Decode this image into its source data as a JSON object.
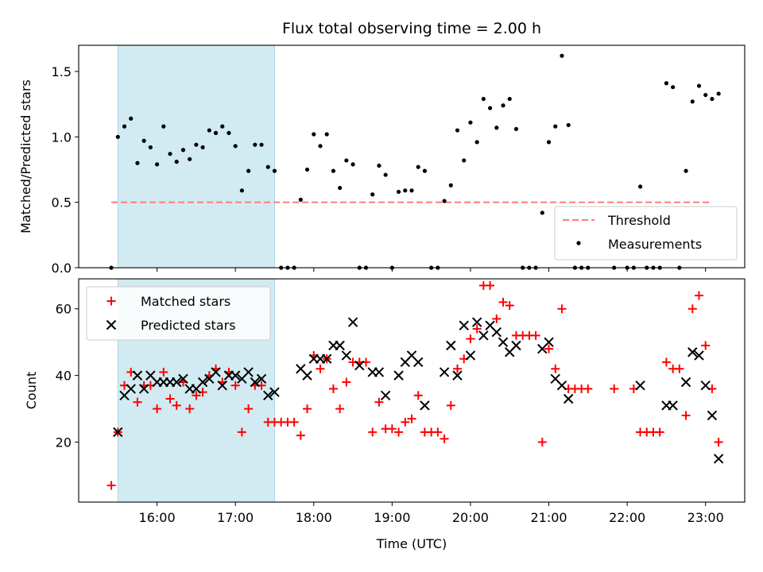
{
  "chart_data": [
    {
      "type": "scatter",
      "title": "Flux total observing time = 2.00 h",
      "xlabel": "",
      "ylabel": "Matched/Predicted stars",
      "xlim": [
        "15:00",
        "23:30"
      ],
      "ylim": [
        0,
        1.7
      ],
      "yticks": [
        0.0,
        0.5,
        1.0,
        1.5
      ],
      "shaded_region": {
        "x": [
          "15:30",
          "17:30"
        ],
        "color": "#add8e6"
      },
      "threshold": {
        "name": "Threshold",
        "y": 0.5,
        "x": [
          "15:25",
          "23:05"
        ],
        "color": "#ff7b7b",
        "style": "dashed"
      },
      "legend_location": "lower right",
      "grid": false,
      "series": [
        {
          "name": "Measurements",
          "marker": "dot",
          "color": "#000000",
          "points": [
            [
              "15:25",
              0.0
            ],
            [
              "15:30",
              1.0
            ],
            [
              "15:35",
              1.08
            ],
            [
              "15:40",
              1.14
            ],
            [
              "15:45",
              0.8
            ],
            [
              "15:50",
              0.97
            ],
            [
              "15:55",
              0.92
            ],
            [
              "16:00",
              0.79
            ],
            [
              "16:05",
              1.08
            ],
            [
              "16:10",
              0.87
            ],
            [
              "16:15",
              0.81
            ],
            [
              "16:20",
              0.9
            ],
            [
              "16:25",
              0.83
            ],
            [
              "16:30",
              0.94
            ],
            [
              "16:35",
              0.92
            ],
            [
              "16:40",
              1.05
            ],
            [
              "16:45",
              1.03
            ],
            [
              "16:50",
              1.08
            ],
            [
              "16:55",
              1.03
            ],
            [
              "17:00",
              0.93
            ],
            [
              "17:05",
              0.59
            ],
            [
              "17:10",
              0.74
            ],
            [
              "17:15",
              0.94
            ],
            [
              "17:20",
              0.94
            ],
            [
              "17:25",
              0.77
            ],
            [
              "17:30",
              0.74
            ],
            [
              "17:35",
              0.0
            ],
            [
              "17:40",
              0.0
            ],
            [
              "17:45",
              0.0
            ],
            [
              "17:50",
              0.52
            ],
            [
              "17:55",
              0.75
            ],
            [
              "18:00",
              1.02
            ],
            [
              "18:05",
              0.93
            ],
            [
              "18:10",
              1.02
            ],
            [
              "18:15",
              0.74
            ],
            [
              "18:20",
              0.61
            ],
            [
              "18:25",
              0.82
            ],
            [
              "18:30",
              0.79
            ],
            [
              "18:35",
              0.0
            ],
            [
              "18:40",
              0.0
            ],
            [
              "18:45",
              0.56
            ],
            [
              "18:50",
              0.78
            ],
            [
              "18:55",
              0.71
            ],
            [
              "19:00",
              0.0
            ],
            [
              "19:05",
              0.58
            ],
            [
              "19:10",
              0.59
            ],
            [
              "19:15",
              0.59
            ],
            [
              "19:20",
              0.77
            ],
            [
              "19:25",
              0.74
            ],
            [
              "19:30",
              0.0
            ],
            [
              "19:35",
              0.0
            ],
            [
              "19:40",
              0.51
            ],
            [
              "19:45",
              0.63
            ],
            [
              "19:50",
              1.05
            ],
            [
              "19:55",
              0.82
            ],
            [
              "20:00",
              1.11
            ],
            [
              "20:05",
              0.96
            ],
            [
              "20:10",
              1.29
            ],
            [
              "20:15",
              1.22
            ],
            [
              "20:20",
              1.07
            ],
            [
              "20:25",
              1.24
            ],
            [
              "20:30",
              1.29
            ],
            [
              "20:35",
              1.06
            ],
            [
              "20:40",
              0.0
            ],
            [
              "20:45",
              0.0
            ],
            [
              "20:50",
              0.0
            ],
            [
              "20:55",
              0.42
            ],
            [
              "21:00",
              0.96
            ],
            [
              "21:05",
              1.08
            ],
            [
              "21:10",
              1.62
            ],
            [
              "21:15",
              1.09
            ],
            [
              "21:20",
              0.0
            ],
            [
              "21:25",
              0.0
            ],
            [
              "21:30",
              0.0
            ],
            [
              "21:50",
              0.0
            ],
            [
              "22:00",
              0.0
            ],
            [
              "22:05",
              0.0
            ],
            [
              "22:10",
              0.62
            ],
            [
              "22:15",
              0.0
            ],
            [
              "22:20",
              0.0
            ],
            [
              "22:25",
              0.0
            ],
            [
              "22:30",
              1.41
            ],
            [
              "22:35",
              1.38
            ],
            [
              "22:40",
              0.0
            ],
            [
              "22:45",
              0.74
            ],
            [
              "22:50",
              1.27
            ],
            [
              "22:55",
              1.39
            ],
            [
              "23:00",
              1.32
            ],
            [
              "23:05",
              1.29
            ],
            [
              "23:10",
              1.33
            ]
          ]
        }
      ]
    },
    {
      "type": "scatter",
      "title": "",
      "xlabel": "Time (UTC)",
      "ylabel": "Count",
      "xlim": [
        "15:00",
        "23:30"
      ],
      "ylim": [
        2,
        69
      ],
      "yticks": [
        20,
        40,
        60
      ],
      "xticks": [
        "16:00",
        "17:00",
        "18:00",
        "19:00",
        "20:00",
        "21:00",
        "22:00",
        "23:00"
      ],
      "shaded_region": {
        "x": [
          "15:30",
          "17:30"
        ],
        "color": "#add8e6"
      },
      "legend_location": "upper left",
      "grid": false,
      "series": [
        {
          "name": "Matched stars",
          "marker": "plus",
          "color": "#ff0000",
          "points": [
            [
              "15:25",
              7
            ],
            [
              "15:30",
              23
            ],
            [
              "15:35",
              37
            ],
            [
              "15:40",
              41
            ],
            [
              "15:45",
              32
            ],
            [
              "15:50",
              37
            ],
            [
              "15:55",
              37
            ],
            [
              "16:00",
              30
            ],
            [
              "16:05",
              41
            ],
            [
              "16:10",
              33
            ],
            [
              "16:15",
              31
            ],
            [
              "16:20",
              38
            ],
            [
              "16:25",
              30
            ],
            [
              "16:30",
              34
            ],
            [
              "16:35",
              35
            ],
            [
              "16:40",
              40
            ],
            [
              "16:45",
              42
            ],
            [
              "16:50",
              38
            ],
            [
              "16:55",
              41
            ],
            [
              "17:00",
              37
            ],
            [
              "17:05",
              23
            ],
            [
              "17:10",
              30
            ],
            [
              "17:15",
              37
            ],
            [
              "17:20",
              37
            ],
            [
              "17:25",
              26
            ],
            [
              "17:30",
              26
            ],
            [
              "17:35",
              26
            ],
            [
              "17:40",
              26
            ],
            [
              "17:45",
              26
            ],
            [
              "17:50",
              22
            ],
            [
              "17:55",
              30
            ],
            [
              "18:00",
              46
            ],
            [
              "18:05",
              42
            ],
            [
              "18:10",
              45
            ],
            [
              "18:15",
              36
            ],
            [
              "18:20",
              30
            ],
            [
              "18:25",
              38
            ],
            [
              "18:30",
              44
            ],
            [
              "18:35",
              44
            ],
            [
              "18:40",
              44
            ],
            [
              "18:45",
              23
            ],
            [
              "18:50",
              32
            ],
            [
              "18:55",
              24
            ],
            [
              "19:00",
              24
            ],
            [
              "19:05",
              23
            ],
            [
              "19:10",
              26
            ],
            [
              "19:15",
              27
            ],
            [
              "19:20",
              34
            ],
            [
              "19:25",
              23
            ],
            [
              "19:30",
              23
            ],
            [
              "19:35",
              23
            ],
            [
              "19:40",
              21
            ],
            [
              "19:45",
              31
            ],
            [
              "19:50",
              42
            ],
            [
              "19:55",
              45
            ],
            [
              "20:00",
              51
            ],
            [
              "20:05",
              54
            ],
            [
              "20:10",
              67
            ],
            [
              "20:15",
              67
            ],
            [
              "20:20",
              57
            ],
            [
              "20:25",
              62
            ],
            [
              "20:30",
              61
            ],
            [
              "20:35",
              52
            ],
            [
              "20:40",
              52
            ],
            [
              "20:45",
              52
            ],
            [
              "20:50",
              52
            ],
            [
              "20:55",
              20
            ],
            [
              "21:00",
              48
            ],
            [
              "21:05",
              42
            ],
            [
              "21:10",
              60
            ],
            [
              "21:15",
              36
            ],
            [
              "21:20",
              36
            ],
            [
              "21:25",
              36
            ],
            [
              "21:30",
              36
            ],
            [
              "21:50",
              36
            ],
            [
              "22:05",
              36
            ],
            [
              "22:10",
              23
            ],
            [
              "22:15",
              23
            ],
            [
              "22:20",
              23
            ],
            [
              "22:25",
              23
            ],
            [
              "22:30",
              44
            ],
            [
              "22:35",
              42
            ],
            [
              "22:40",
              42
            ],
            [
              "22:45",
              28
            ],
            [
              "22:50",
              60
            ],
            [
              "22:55",
              64
            ],
            [
              "23:00",
              49
            ],
            [
              "23:05",
              36
            ],
            [
              "23:10",
              20
            ]
          ]
        },
        {
          "name": "Predicted stars",
          "marker": "x",
          "color": "#000000",
          "points": [
            [
              "15:30",
              23
            ],
            [
              "15:35",
              34
            ],
            [
              "15:40",
              36
            ],
            [
              "15:45",
              40
            ],
            [
              "15:50",
              36
            ],
            [
              "15:55",
              40
            ],
            [
              "16:00",
              38
            ],
            [
              "16:05",
              38
            ],
            [
              "16:10",
              38
            ],
            [
              "16:15",
              38
            ],
            [
              "16:20",
              39
            ],
            [
              "16:25",
              36
            ],
            [
              "16:30",
              36
            ],
            [
              "16:35",
              38
            ],
            [
              "16:40",
              39
            ],
            [
              "16:45",
              41
            ],
            [
              "16:50",
              37
            ],
            [
              "16:55",
              40
            ],
            [
              "17:00",
              40
            ],
            [
              "17:05",
              39
            ],
            [
              "17:10",
              41
            ],
            [
              "17:15",
              38
            ],
            [
              "17:20",
              39
            ],
            [
              "17:25",
              34
            ],
            [
              "17:30",
              35
            ],
            [
              "17:50",
              42
            ],
            [
              "17:55",
              40
            ],
            [
              "18:00",
              45
            ],
            [
              "18:05",
              45
            ],
            [
              "18:10",
              45
            ],
            [
              "18:15",
              49
            ],
            [
              "18:20",
              49
            ],
            [
              "18:25",
              46
            ],
            [
              "18:30",
              56
            ],
            [
              "18:35",
              43
            ],
            [
              "18:45",
              41
            ],
            [
              "18:50",
              41
            ],
            [
              "18:55",
              34
            ],
            [
              "19:05",
              40
            ],
            [
              "19:10",
              44
            ],
            [
              "19:15",
              46
            ],
            [
              "19:20",
              44
            ],
            [
              "19:25",
              31
            ],
            [
              "19:40",
              41
            ],
            [
              "19:45",
              49
            ],
            [
              "19:50",
              40
            ],
            [
              "19:55",
              55
            ],
            [
              "20:00",
              46
            ],
            [
              "20:05",
              56
            ],
            [
              "20:10",
              52
            ],
            [
              "20:15",
              55
            ],
            [
              "20:20",
              53
            ],
            [
              "20:25",
              50
            ],
            [
              "20:30",
              47
            ],
            [
              "20:35",
              49
            ],
            [
              "20:55",
              48
            ],
            [
              "21:00",
              50
            ],
            [
              "21:05",
              39
            ],
            [
              "21:10",
              37
            ],
            [
              "21:15",
              33
            ],
            [
              "22:10",
              37
            ],
            [
              "22:30",
              31
            ],
            [
              "22:35",
              31
            ],
            [
              "22:45",
              38
            ],
            [
              "22:50",
              47
            ],
            [
              "22:55",
              46
            ],
            [
              "23:00",
              37
            ],
            [
              "23:05",
              28
            ],
            [
              "23:10",
              15
            ]
          ]
        }
      ]
    }
  ]
}
